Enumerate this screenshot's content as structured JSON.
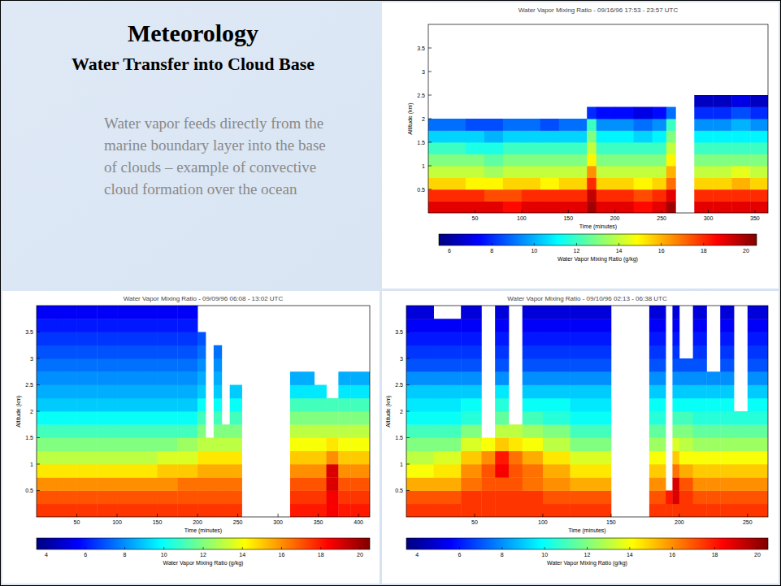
{
  "slide": {
    "title": "Meteorology",
    "subtitle": "Water Transfer into Cloud Base",
    "body": "Water vapor feeds directly from the marine boundary layer into the base of clouds – example of convective cloud formation over the ocean"
  },
  "chart_data": [
    {
      "type": "heatmap",
      "title": "Water Vapor Mixing Ratio - 09/16/96 17:53 - 23:57 UTC",
      "x_label": "Time (minutes)",
      "y_label": "Altitude (km)",
      "xlim": [
        0,
        364
      ],
      "ylim": [
        0,
        4
      ],
      "xticks": [
        50,
        100,
        150,
        200,
        250,
        300,
        350
      ],
      "yticks": [
        0.5,
        1,
        1.5,
        2,
        2.5,
        3,
        3.5
      ],
      "x_bins": [
        0,
        20,
        40,
        60,
        80,
        100,
        120,
        140,
        160,
        170,
        180,
        200,
        220,
        240,
        255,
        265,
        285,
        305,
        325,
        345,
        364
      ],
      "y_bins": [
        0,
        0.25,
        0.5,
        0.75,
        1,
        1.25,
        1.5,
        1.75,
        2,
        2.25,
        2.5,
        2.75,
        3,
        3.25,
        3.5,
        3.75,
        4
      ],
      "cells": [
        [
          19,
          19,
          19,
          19,
          18.5,
          19,
          19,
          19,
          19,
          20,
          19,
          19,
          18.5,
          19,
          20,
          null,
          19,
          19,
          19,
          19
        ],
        [
          18,
          18,
          18,
          17.5,
          17.5,
          18,
          18,
          18,
          18,
          19.5,
          18,
          18,
          17.5,
          18,
          19,
          null,
          18,
          18,
          18,
          18
        ],
        [
          15.5,
          15.5,
          15,
          15,
          15.5,
          15.5,
          15,
          15.5,
          15.5,
          18,
          15.5,
          15.5,
          15,
          15.5,
          17,
          null,
          15.5,
          15.5,
          16,
          15.5
        ],
        [
          14,
          14,
          14,
          13.5,
          14,
          14,
          14,
          14,
          14,
          16.5,
          14,
          14,
          14,
          14,
          16,
          null,
          14,
          14,
          14.5,
          14
        ],
        [
          13,
          13,
          13,
          12.5,
          13,
          13,
          13,
          13,
          13,
          15,
          13,
          13,
          13,
          13,
          15,
          null,
          13,
          13,
          13,
          13
        ],
        [
          12,
          12,
          11.5,
          11.5,
          12,
          12,
          12,
          12,
          12,
          14,
          12,
          12,
          12,
          12,
          14,
          null,
          12,
          12,
          12,
          12
        ],
        [
          10.5,
          10.5,
          10.5,
          10,
          10.5,
          10.5,
          10.5,
          10.5,
          10.5,
          13,
          11,
          11,
          10.5,
          11,
          13,
          null,
          11,
          11,
          11,
          11
        ],
        [
          9,
          9,
          8.5,
          8.5,
          9,
          9,
          8.5,
          9,
          9,
          12,
          9.5,
          9.5,
          9,
          9.5,
          12,
          null,
          9.5,
          9.5,
          10,
          9.5
        ],
        [
          null,
          null,
          null,
          null,
          null,
          null,
          null,
          null,
          null,
          8,
          7.5,
          7.5,
          7,
          7.5,
          9,
          null,
          8,
          8,
          8.5,
          8
        ],
        [
          null,
          null,
          null,
          null,
          null,
          null,
          null,
          null,
          null,
          null,
          null,
          null,
          null,
          null,
          null,
          null,
          6.5,
          6.5,
          7,
          6.5
        ],
        [
          null,
          null,
          null,
          null,
          null,
          null,
          null,
          null,
          null,
          null,
          null,
          null,
          null,
          null,
          null,
          null,
          null,
          null,
          null,
          null
        ],
        [
          null,
          null,
          null,
          null,
          null,
          null,
          null,
          null,
          null,
          null,
          null,
          null,
          null,
          null,
          null,
          null,
          null,
          null,
          null,
          null
        ],
        [
          null,
          null,
          null,
          null,
          null,
          null,
          null,
          null,
          null,
          null,
          null,
          null,
          null,
          null,
          null,
          null,
          null,
          null,
          null,
          null
        ],
        [
          null,
          null,
          null,
          null,
          null,
          null,
          null,
          null,
          null,
          null,
          null,
          null,
          null,
          null,
          null,
          null,
          null,
          null,
          null,
          null
        ],
        [
          null,
          null,
          null,
          null,
          null,
          null,
          null,
          null,
          null,
          null,
          null,
          null,
          null,
          null,
          null,
          null,
          null,
          null,
          null,
          null
        ],
        [
          null,
          null,
          null,
          null,
          null,
          null,
          null,
          null,
          null,
          null,
          null,
          null,
          null,
          null,
          null,
          null,
          null,
          null,
          null,
          null
        ]
      ],
      "color_label": "Water Vapor Mixing Ratio (g/kg)",
      "color_range": [
        5.5,
        20.5
      ],
      "color_ticks": [
        6,
        8,
        10,
        12,
        14,
        16,
        18,
        20
      ]
    },
    {
      "type": "heatmap",
      "title": "Water Vapor Mixing Ratio - 09/09/96 06:08 - 13:02 UTC",
      "x_label": "Time (minutes)",
      "y_label": "Altitude (km)",
      "xlim": [
        0,
        414
      ],
      "ylim": [
        0,
        4
      ],
      "xticks": [
        50,
        100,
        150,
        200,
        250,
        300,
        350,
        400
      ],
      "yticks": [
        0.5,
        1,
        1.5,
        2,
        2.5,
        3,
        3.5
      ],
      "x_bins": [
        0,
        25,
        50,
        75,
        100,
        125,
        150,
        175,
        200,
        210,
        220,
        230,
        240,
        255,
        315,
        330,
        345,
        360,
        375,
        390,
        414
      ],
      "y_bins": [
        0,
        0.25,
        0.5,
        0.75,
        1,
        1.25,
        1.5,
        1.75,
        2,
        2.25,
        2.5,
        2.75,
        3,
        3.25,
        3.5,
        3.75,
        4
      ],
      "cells": [
        [
          17.5,
          17.5,
          17.5,
          17.5,
          17.5,
          17.5,
          17.5,
          17.5,
          17.5,
          17.5,
          17.5,
          17.5,
          17.5,
          null,
          18,
          18,
          18,
          18.5,
          18,
          18
        ],
        [
          17,
          17,
          17,
          17,
          17,
          17,
          17,
          17,
          17,
          17,
          17,
          17,
          17,
          null,
          17.5,
          17.5,
          17.5,
          18.5,
          17.5,
          17.5
        ],
        [
          16,
          16,
          16,
          16,
          16,
          16,
          16,
          16.5,
          16.5,
          16.5,
          16.5,
          16.5,
          16.5,
          null,
          17,
          17,
          17,
          19,
          17,
          17
        ],
        [
          14.5,
          14.5,
          14.5,
          14.5,
          14.5,
          14.5,
          15,
          15,
          15.5,
          15.5,
          15.5,
          15.5,
          15.5,
          null,
          16,
          16,
          16,
          19,
          16,
          16
        ],
        [
          13,
          13,
          13,
          13,
          13,
          13,
          13.5,
          13.5,
          14.5,
          14.5,
          14.5,
          14.5,
          14.5,
          null,
          15,
          15,
          15,
          16,
          15,
          15
        ],
        [
          12,
          12,
          12,
          12,
          12,
          12,
          12,
          12.5,
          13,
          13,
          13,
          13,
          13,
          null,
          14,
          14,
          14,
          14.5,
          14,
          14
        ],
        [
          11,
          11,
          11,
          11,
          11,
          11,
          11,
          11,
          12,
          null,
          12,
          12,
          12,
          null,
          13,
          13,
          13,
          13,
          13,
          13
        ],
        [
          10,
          10,
          10,
          10,
          10,
          10,
          10,
          10,
          11,
          null,
          11,
          null,
          11,
          null,
          12,
          12,
          12,
          12,
          12,
          12
        ],
        [
          9,
          9,
          9,
          9,
          9,
          9,
          9,
          9,
          10,
          null,
          10,
          null,
          10,
          null,
          11,
          11,
          11,
          11,
          11,
          11
        ],
        [
          8.5,
          8.5,
          8.5,
          8.5,
          8.5,
          8.5,
          8.5,
          8.5,
          9,
          null,
          9,
          null,
          9,
          null,
          9.5,
          9.5,
          9.5,
          null,
          9.5,
          9.5
        ],
        [
          8,
          8,
          8,
          8,
          8,
          8,
          8,
          8,
          8.5,
          null,
          8.5,
          null,
          null,
          null,
          8.5,
          8.5,
          null,
          null,
          8.5,
          8.5
        ],
        [
          7.5,
          7.5,
          7.5,
          7.5,
          7.5,
          7.5,
          7.5,
          7.5,
          8,
          null,
          8,
          null,
          null,
          null,
          null,
          null,
          null,
          null,
          null,
          null
        ],
        [
          7,
          7,
          7,
          7,
          7,
          7,
          7,
          7,
          7.5,
          null,
          7.5,
          null,
          null,
          null,
          null,
          null,
          null,
          null,
          null,
          null
        ],
        [
          6.5,
          6.5,
          6.5,
          6.5,
          6.5,
          6.5,
          6.5,
          6.5,
          7,
          null,
          null,
          null,
          null,
          null,
          null,
          null,
          null,
          null,
          null,
          null
        ],
        [
          6,
          6,
          6,
          6,
          6,
          6,
          6,
          6,
          null,
          null,
          null,
          null,
          null,
          null,
          null,
          null,
          null,
          null,
          null,
          null
        ],
        [
          5.5,
          5.5,
          5.5,
          5.5,
          5.5,
          5.5,
          5.5,
          5.5,
          null,
          null,
          null,
          null,
          null,
          null,
          null,
          null,
          null,
          null,
          null,
          null
        ]
      ],
      "color_label": "Water Vapor Mixing Ratio (g/kg)",
      "color_range": [
        3.5,
        20.5
      ],
      "color_ticks": [
        4,
        6,
        8,
        10,
        12,
        14,
        16,
        18,
        20
      ]
    },
    {
      "type": "heatmap",
      "title": "Water Vapor Mixing Ratio - 09/10/96 02:13 - 06:38 UTC",
      "x_label": "Time (minutes)",
      "y_label": "Altitude (km)",
      "xlim": [
        0,
        265
      ],
      "ylim": [
        0,
        4
      ],
      "xticks": [
        50,
        100,
        150,
        200,
        250
      ],
      "yticks": [
        0.5,
        1,
        1.5,
        2,
        2.5,
        3,
        3.5
      ],
      "x_bins": [
        0,
        20,
        40,
        55,
        65,
        75,
        85,
        100,
        120,
        150,
        178,
        190,
        195,
        200,
        210,
        220,
        230,
        240,
        250,
        265
      ],
      "y_bins": [
        0,
        0.25,
        0.5,
        0.75,
        1,
        1.25,
        1.5,
        1.75,
        2,
        2.25,
        2.5,
        2.75,
        3,
        3.25,
        3.5,
        3.75,
        4
      ],
      "cells": [
        [
          17.5,
          17.5,
          17.5,
          17.5,
          17.5,
          17.5,
          17.5,
          17.5,
          17.5,
          null,
          17.5,
          17.5,
          17.5,
          17.5,
          17.5,
          17.5,
          17.5,
          17.5,
          17.5
        ],
        [
          17,
          17,
          17.5,
          17.5,
          17.5,
          17.5,
          17.5,
          17,
          17,
          null,
          17,
          18,
          19,
          17.5,
          17,
          17,
          17,
          17,
          17
        ],
        [
          15.5,
          15.5,
          16.5,
          17,
          17,
          17,
          16.5,
          16,
          15.5,
          null,
          16,
          null,
          19,
          17,
          16,
          16,
          16,
          16,
          16
        ],
        [
          14,
          14.5,
          16,
          17,
          18.5,
          17,
          16.5,
          15.5,
          14.5,
          null,
          15,
          null,
          16.5,
          15.5,
          15,
          15,
          15,
          15,
          15
        ],
        [
          13,
          13.5,
          15,
          16,
          18,
          16.5,
          15.5,
          14.5,
          13.5,
          null,
          14,
          null,
          15,
          14,
          14,
          14,
          14,
          14,
          14
        ],
        [
          12,
          12,
          13.5,
          14,
          15,
          14.5,
          14,
          13,
          12,
          null,
          12.5,
          null,
          13.5,
          13,
          12.5,
          12.5,
          12.5,
          12.5,
          12.5
        ],
        [
          11,
          11,
          12,
          null,
          13,
          13,
          12.5,
          12,
          11,
          null,
          11.5,
          null,
          12,
          12,
          11.5,
          11.5,
          11.5,
          11.5,
          11.5
        ],
        [
          10,
          10,
          10.5,
          null,
          11.5,
          null,
          11,
          10.5,
          10,
          null,
          10.5,
          null,
          11,
          11,
          10.5,
          10.5,
          10.5,
          10.5,
          10.5
        ],
        [
          9.5,
          9.5,
          10,
          null,
          10.5,
          null,
          10,
          10,
          9.5,
          null,
          10,
          null,
          10,
          10,
          10,
          10,
          10,
          null,
          10
        ],
        [
          9,
          9,
          9,
          null,
          9.5,
          null,
          9,
          9,
          9,
          null,
          9,
          null,
          9,
          9,
          9,
          9,
          9,
          null,
          9
        ],
        [
          8,
          8,
          8,
          null,
          8,
          null,
          8,
          8,
          8,
          null,
          8,
          null,
          8,
          8,
          8,
          8,
          8,
          null,
          8
        ],
        [
          7,
          7,
          7,
          null,
          7,
          null,
          7,
          7,
          7,
          null,
          7,
          null,
          7,
          7,
          7,
          null,
          7,
          null,
          7
        ],
        [
          6.5,
          6.5,
          6.5,
          null,
          6.5,
          null,
          6.5,
          6.5,
          6.5,
          null,
          6.5,
          null,
          6.5,
          null,
          6.5,
          null,
          6.5,
          null,
          6.5
        ],
        [
          6,
          6,
          6,
          null,
          6,
          null,
          6,
          6,
          6,
          null,
          6,
          null,
          6,
          null,
          6,
          null,
          6,
          null,
          6
        ],
        [
          5.5,
          5.5,
          5.5,
          null,
          5.5,
          null,
          5.5,
          5.5,
          5.5,
          null,
          5.5,
          null,
          5.5,
          null,
          5.5,
          null,
          5.5,
          null,
          5.5
        ],
        [
          5,
          null,
          5,
          null,
          5,
          null,
          5,
          5,
          5,
          null,
          5,
          null,
          5,
          null,
          5,
          null,
          5,
          null,
          5
        ]
      ],
      "color_label": "Water Vapor Mixing Ratio (g/kg)",
      "color_range": [
        3.5,
        20.5
      ],
      "color_ticks": [
        4,
        6,
        8,
        10,
        12,
        14,
        16,
        18,
        20
      ]
    }
  ]
}
